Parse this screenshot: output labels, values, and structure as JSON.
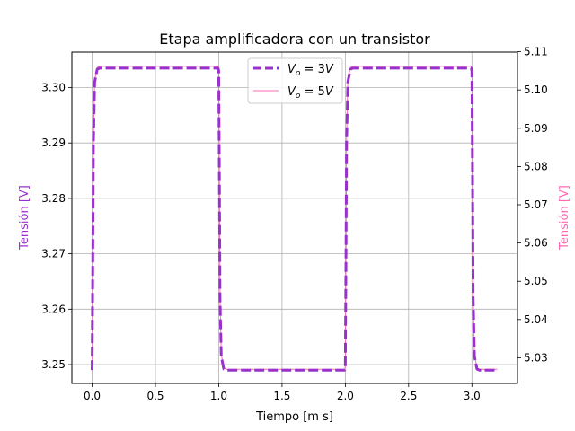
{
  "chart_data": {
    "type": "line",
    "title": "Etapa amplificadora con un transistor",
    "xlabel": "Tiempo [m s]",
    "ylabel_left": "Tensión [V]",
    "ylabel_right": "Tensión [V]",
    "xlim": [
      -0.16,
      3.36
    ],
    "ylim_left": [
      3.2466,
      3.3064
    ],
    "ylim_right": [
      5.0233,
      5.1099
    ],
    "x_ticks": [
      "0.0",
      "0.5",
      "1.0",
      "1.5",
      "2.0",
      "2.5",
      "3.0"
    ],
    "y_left_ticks": [
      "3.25",
      "3.26",
      "3.27",
      "3.28",
      "3.29",
      "3.30"
    ],
    "y_right_ticks": [
      "5.03",
      "5.04",
      "5.05",
      "5.06",
      "5.07",
      "5.08",
      "5.09",
      "5.10",
      "5.11"
    ],
    "grid": true,
    "legend_position": "top-center",
    "series": [
      {
        "name": "V_o = 3V",
        "axis": "left",
        "color": "#9932cc",
        "style": "dashed",
        "x": [
          0.0,
          0.005,
          0.01,
          0.02,
          0.04,
          0.06,
          0.1,
          0.3,
          0.5,
          0.7,
          0.9,
          0.98,
          0.995,
          1.0,
          1.005,
          1.01,
          1.02,
          1.04,
          1.06,
          1.1,
          1.3,
          1.5,
          1.7,
          1.9,
          1.98,
          1.995,
          2.0,
          2.005,
          2.01,
          2.02,
          2.04,
          2.06,
          2.1,
          2.3,
          2.5,
          2.7,
          2.9,
          2.98,
          2.995,
          3.0,
          3.005,
          3.01,
          3.02,
          3.04,
          3.06,
          3.1,
          3.2
        ],
        "y": [
          3.249,
          3.268,
          3.29,
          3.301,
          3.3033,
          3.3035,
          3.3035,
          3.3035,
          3.3035,
          3.3035,
          3.3035,
          3.3035,
          3.3035,
          3.303,
          3.284,
          3.262,
          3.2515,
          3.2492,
          3.249,
          3.249,
          3.249,
          3.249,
          3.249,
          3.249,
          3.249,
          3.249,
          3.2495,
          3.268,
          3.29,
          3.301,
          3.3033,
          3.3035,
          3.3035,
          3.3035,
          3.3035,
          3.3035,
          3.3035,
          3.3035,
          3.3035,
          3.303,
          3.284,
          3.262,
          3.2515,
          3.2492,
          3.249,
          3.249,
          3.249
        ]
      },
      {
        "name": "V_o = 5V",
        "axis": "right",
        "color": "#ff69b4",
        "style": "solid",
        "x": [
          0.0,
          0.005,
          0.01,
          0.02,
          0.04,
          0.06,
          0.1,
          0.3,
          0.5,
          0.7,
          0.9,
          0.98,
          0.995,
          1.0,
          1.005,
          1.01,
          1.02,
          1.04,
          1.06,
          1.1,
          1.3,
          1.5,
          1.7,
          1.9,
          1.98,
          1.995,
          2.0,
          2.005,
          2.01,
          2.02,
          2.04,
          2.06,
          2.1,
          2.3,
          2.5,
          2.7,
          2.9,
          2.98,
          2.995,
          3.0,
          3.005,
          3.01,
          3.02,
          3.04,
          3.06,
          3.1,
          3.2
        ],
        "y": [
          5.027,
          5.055,
          5.087,
          5.1025,
          5.1059,
          5.1062,
          5.1062,
          5.1062,
          5.1062,
          5.1062,
          5.1062,
          5.1062,
          5.1062,
          5.1055,
          5.078,
          5.046,
          5.031,
          5.0273,
          5.027,
          5.027,
          5.027,
          5.027,
          5.027,
          5.027,
          5.027,
          5.027,
          5.0277,
          5.055,
          5.087,
          5.1025,
          5.1059,
          5.1062,
          5.1062,
          5.1062,
          5.1062,
          5.1062,
          5.1062,
          5.1062,
          5.1062,
          5.1055,
          5.078,
          5.046,
          5.031,
          5.0273,
          5.027,
          5.027,
          5.027
        ]
      }
    ]
  }
}
